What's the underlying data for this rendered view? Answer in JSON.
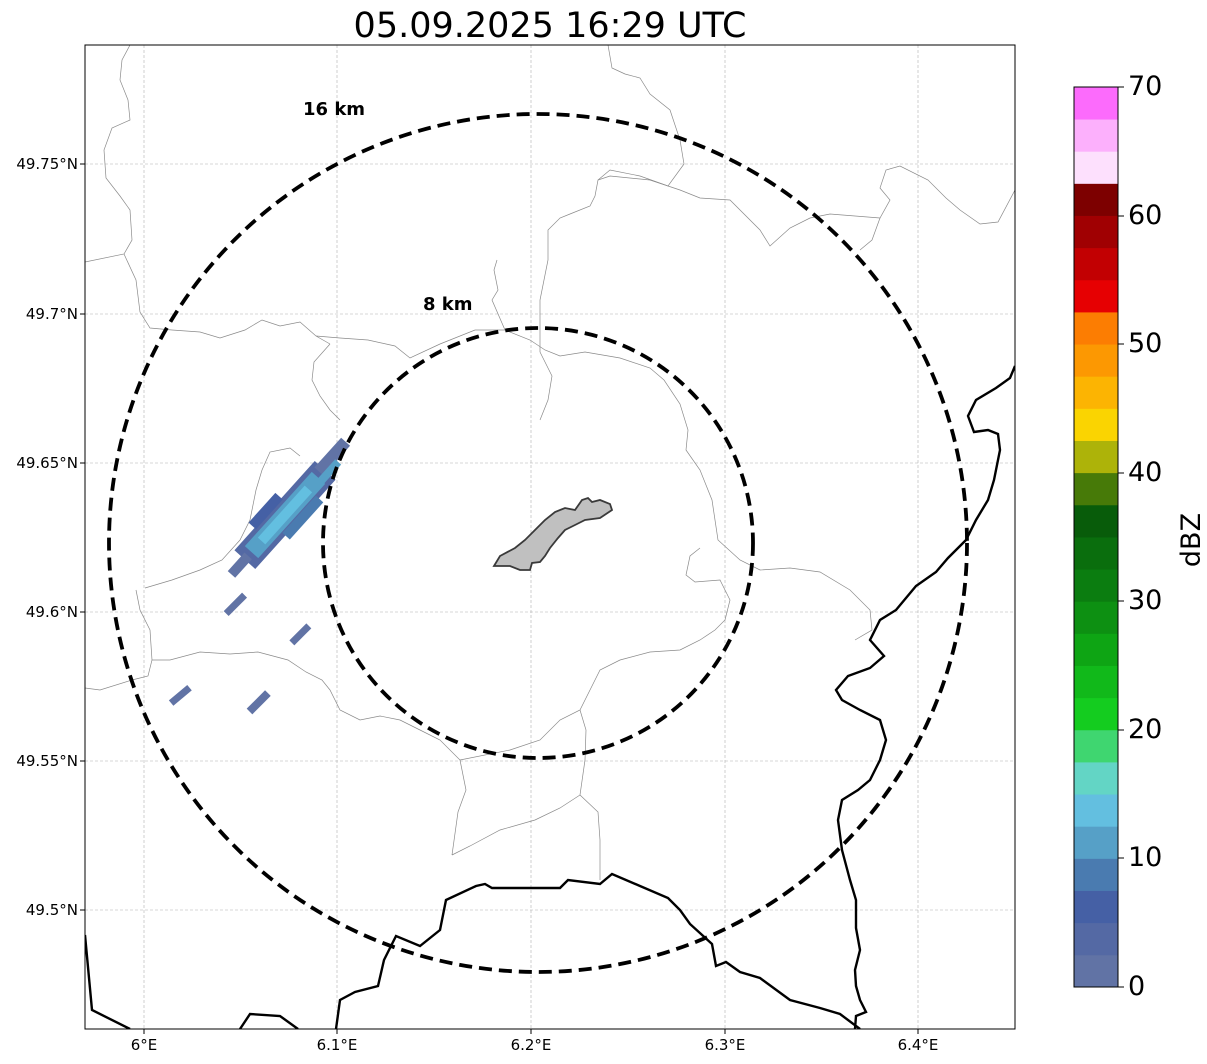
{
  "title": "05.09.2025 16:29 UTC",
  "map": {
    "lat_labels": [
      "49.75°N",
      "49.7°N",
      "49.65°N",
      "49.6°N",
      "49.55°N",
      "49.5°N"
    ],
    "lon_labels": [
      "6°E",
      "6.1°E",
      "6.2°E",
      "6.3°E",
      "6.4°E"
    ],
    "range_rings": [
      {
        "label": "16 km",
        "radius_km": 16
      },
      {
        "label": "8 km",
        "radius_km": 8
      }
    ],
    "gridlines": true,
    "center_shape_color": "#c0c0c0",
    "precipitation": {
      "location": "northwest of center",
      "max_dbz_approx": 14
    }
  },
  "colorbar": {
    "title": "dBZ",
    "ticks": [
      "0",
      "10",
      "20",
      "30",
      "40",
      "50",
      "60",
      "70"
    ],
    "min": 0,
    "max": 70,
    "step": 2.5,
    "colors": [
      "#6173a5",
      "#5469a4",
      "#4560a5",
      "#4a7bb0",
      "#56a0c7",
      "#63bfe0",
      "#63d5c5",
      "#3fd670",
      "#14cc1f",
      "#11b91a",
      "#0ea514",
      "#0d9012",
      "#0b7d10",
      "#0a6e0d",
      "#085c0a",
      "#477a08",
      "#adb309",
      "#fad401",
      "#fcb402",
      "#fc9802",
      "#fc7d02",
      "#e60002",
      "#c20002",
      "#a00002",
      "#7d0000",
      "#fde0fd",
      "#fcb0fc",
      "#fc6bfc",
      "#ee35ee"
    ]
  }
}
